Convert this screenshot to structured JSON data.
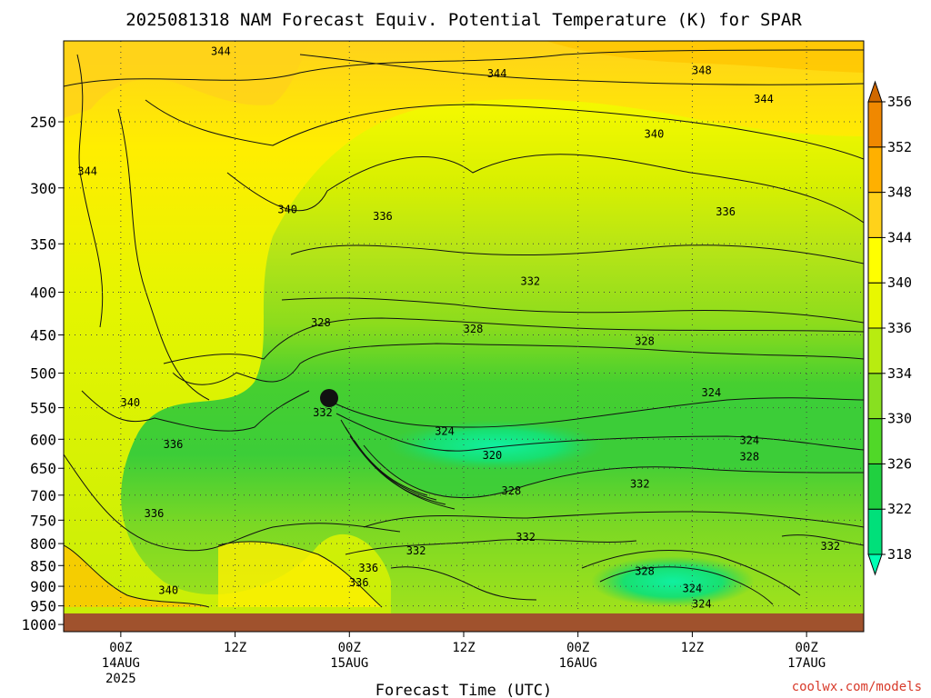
{
  "chart_data": {
    "type": "heatmap",
    "title": "2025081318 NAM Forecast Equiv. Potential Temperature (K) for SPAR",
    "xlabel": "Forecast Time (UTC)",
    "ylabel": "",
    "credit": "coolwx.com/models",
    "x_ticks": [
      {
        "line1": "00Z",
        "line2": "14AUG",
        "line3": "2025"
      },
      {
        "line1": "12Z",
        "line2": "",
        "line3": ""
      },
      {
        "line1": "00Z",
        "line2": "15AUG",
        "line3": ""
      },
      {
        "line1": "12Z",
        "line2": "",
        "line3": ""
      },
      {
        "line1": "00Z",
        "line2": "16AUG",
        "line3": ""
      },
      {
        "line1": "12Z",
        "line2": "",
        "line3": ""
      },
      {
        "line1": "00Z",
        "line2": "17AUG",
        "line3": ""
      }
    ],
    "x_tick_hours": [
      6,
      18,
      30,
      42,
      54,
      66,
      78
    ],
    "x_range_hours": [
      0,
      84
    ],
    "y_ticks": [
      250,
      300,
      350,
      400,
      450,
      500,
      550,
      600,
      650,
      700,
      750,
      800,
      850,
      900,
      950,
      1000
    ],
    "y_range": [
      200,
      1020
    ],
    "y_scale": "log",
    "surface_pressure": 970,
    "surface_color": "#a0522d",
    "grid": true,
    "colorbar": {
      "labels": [
        318,
        322,
        326,
        330,
        334,
        336,
        340,
        344,
        348,
        352,
        356
      ],
      "colors": [
        "#00ffb4",
        "#00e07a",
        "#20d040",
        "#50d828",
        "#88e020",
        "#b8ec10",
        "#e8f800",
        "#ffff00",
        "#ffd21a",
        "#ffb000",
        "#f08800",
        "#d06800"
      ]
    },
    "contour_labels": [
      {
        "text": "344",
        "hour": 16.5,
        "p": 207
      },
      {
        "text": "344",
        "hour": 45.5,
        "p": 220
      },
      {
        "text": "348",
        "hour": 67,
        "p": 218
      },
      {
        "text": "344",
        "hour": 73.5,
        "p": 236
      },
      {
        "text": "340",
        "hour": 62,
        "p": 260
      },
      {
        "text": "344",
        "hour": 2.5,
        "p": 288
      },
      {
        "text": "340",
        "hour": 23.5,
        "p": 320
      },
      {
        "text": "336",
        "hour": 33.5,
        "p": 326
      },
      {
        "text": "336",
        "hour": 69.5,
        "p": 322
      },
      {
        "text": "332",
        "hour": 49,
        "p": 390
      },
      {
        "text": "328",
        "hour": 27,
        "p": 437
      },
      {
        "text": "328",
        "hour": 43,
        "p": 445
      },
      {
        "text": "328",
        "hour": 61,
        "p": 460
      },
      {
        "text": "332",
        "hour": 27.2,
        "p": 560
      },
      {
        "text": "340",
        "hour": 7,
        "p": 545
      },
      {
        "text": "324",
        "hour": 68,
        "p": 530
      },
      {
        "text": "324",
        "hour": 40,
        "p": 590
      },
      {
        "text": "320",
        "hour": 45,
        "p": 630
      },
      {
        "text": "324",
        "hour": 72,
        "p": 605
      },
      {
        "text": "328",
        "hour": 72,
        "p": 633
      },
      {
        "text": "336",
        "hour": 11.5,
        "p": 612
      },
      {
        "text": "332",
        "hour": 60.5,
        "p": 682
      },
      {
        "text": "328",
        "hour": 47,
        "p": 695
      },
      {
        "text": "336",
        "hour": 9.5,
        "p": 740
      },
      {
        "text": "332",
        "hour": 48.5,
        "p": 790
      },
      {
        "text": "332",
        "hour": 37,
        "p": 820
      },
      {
        "text": "332",
        "hour": 80.5,
        "p": 810
      },
      {
        "text": "336",
        "hour": 32,
        "p": 860
      },
      {
        "text": "328",
        "hour": 61,
        "p": 868
      },
      {
        "text": "336",
        "hour": 31,
        "p": 895
      },
      {
        "text": "340",
        "hour": 11,
        "p": 915
      },
      {
        "text": "324",
        "hour": 66,
        "p": 910
      },
      {
        "text": "324",
        "hour": 67,
        "p": 950
      }
    ]
  }
}
